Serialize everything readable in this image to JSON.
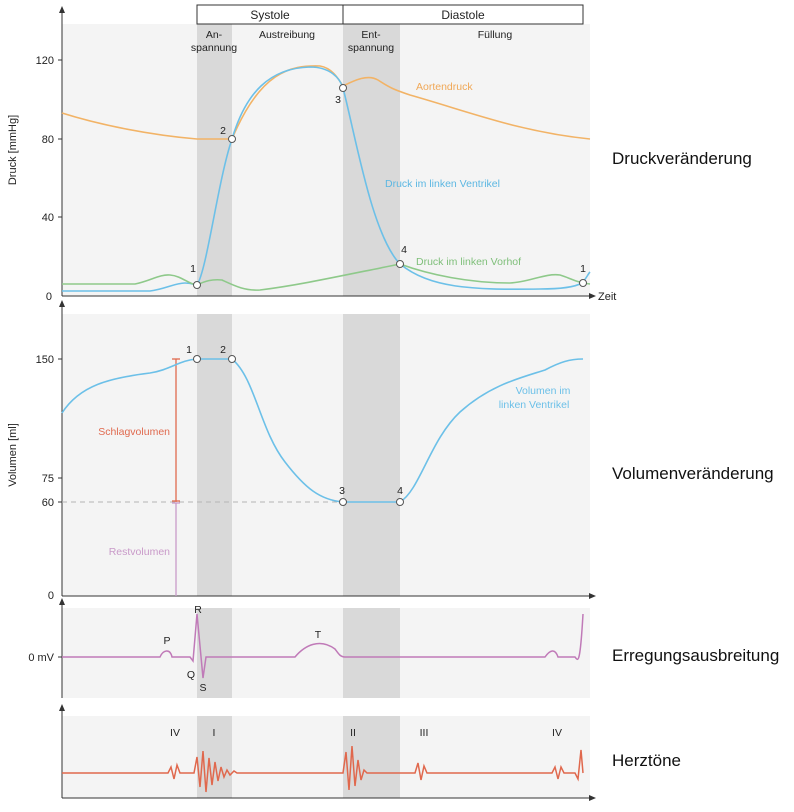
{
  "phases": {
    "systole": "Systole",
    "diastole": "Diastole",
    "anspannung": [
      "An-",
      "spannung"
    ],
    "austreibung": "Austreibung",
    "entspannung": [
      "Ent-",
      "spannung"
    ],
    "fuellung": "Füllung"
  },
  "pressure": {
    "title": "Druckveränderung",
    "ylabel": "Druck [mmHg]",
    "xlabel": "Zeit",
    "ticks": [
      "0",
      "40",
      "80",
      "120"
    ],
    "aortic_label": "Aortendruck",
    "ventricle_label": "Druck im linken Ventrikel",
    "atrium_label": "Druck im linken Vorhof",
    "points": [
      "1",
      "2",
      "3",
      "4",
      "1"
    ]
  },
  "volume": {
    "title": "Volumenveränderung",
    "ylabel": "Volumen [ml]",
    "ticks": [
      "0",
      "60",
      "75",
      "150"
    ],
    "curve_label": [
      "Volumen im",
      "linken Ventrikel"
    ],
    "stroke_label": "Schlagvolumen",
    "residual_label": "Restvolumen",
    "points": [
      "1",
      "2",
      "3",
      "4"
    ]
  },
  "ecg": {
    "title": "Erregungsausbreitung",
    "baseline_label": "0 mV",
    "waves": [
      "P",
      "R",
      "Q",
      "S",
      "T"
    ]
  },
  "sounds": {
    "title": "Herztöne",
    "labels": [
      "IV",
      "I",
      "II",
      "III",
      "IV"
    ]
  },
  "colors": {
    "aortic": "#f2b366",
    "ventricle": "#6cc0e8",
    "atrium": "#8ec98a",
    "stroke": "#e06a4f",
    "residual": "#c99ac9",
    "ecg": "#c07ab8",
    "sound": "#e0684d",
    "shade": "#d9d9d9",
    "panel": "#f4f4f4"
  }
}
